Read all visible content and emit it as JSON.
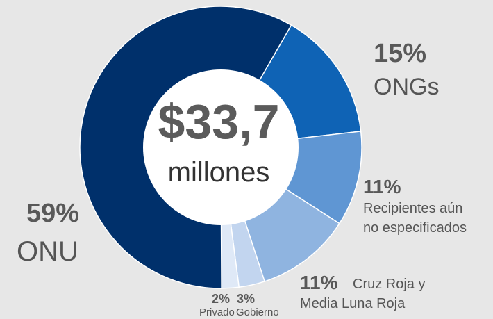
{
  "chart_data": {
    "type": "pie",
    "variant": "donut",
    "center": {
      "value": "$33,7",
      "unit": "millones"
    },
    "slices": [
      {
        "label": "ONGs",
        "percent_label": "15%",
        "value": 15,
        "color": "#0f63b5"
      },
      {
        "label": "Recipientes aún no especificados",
        "label_line1": "Recipientes aún",
        "label_line2": "no especificados",
        "percent_label": "11%",
        "value": 11,
        "color": "#5f96d3"
      },
      {
        "label": "Cruz Roja y Media Luna Roja",
        "label_line1": "Cruz Roja y",
        "label_line2": "Media Luna Roja",
        "percent_label": "11%",
        "value": 11,
        "color": "#8fb4e0"
      },
      {
        "label": "Gobierno",
        "percent_label": "3%",
        "value": 3,
        "color": "#c2d5ef"
      },
      {
        "label": "Privado",
        "percent_label": "2%",
        "value": 2,
        "color": "#dfe9f7"
      },
      {
        "label": "ONU",
        "percent_label": "59%",
        "value": 59,
        "color": "#00306b"
      }
    ]
  }
}
